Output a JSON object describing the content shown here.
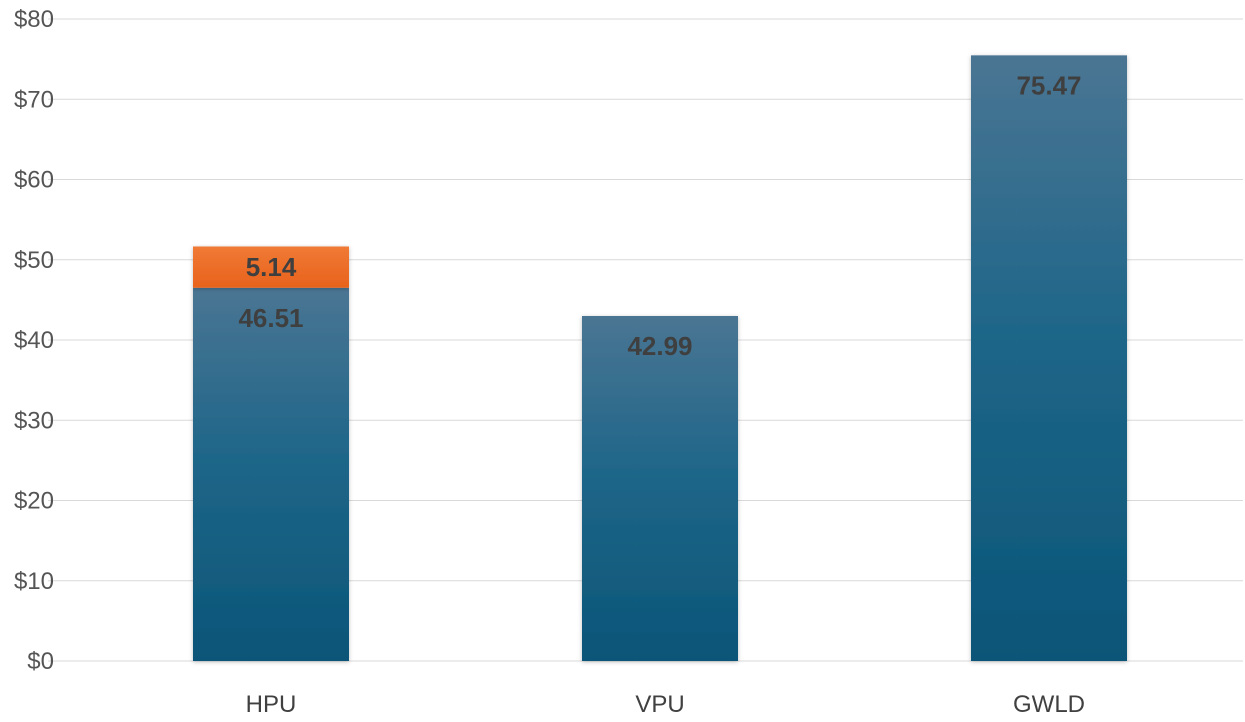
{
  "chart_data": {
    "type": "bar",
    "stacked": true,
    "categories": [
      "HPU",
      "VPU",
      "GWLD"
    ],
    "series": [
      {
        "color": "#0e5a80",
        "values": [
          46.51,
          42.99,
          75.47
        ]
      },
      {
        "color": "#ee6a22",
        "values": [
          5.14,
          null,
          null
        ]
      }
    ],
    "data_labels": [
      [
        "46.51",
        "42.99",
        "75.47"
      ],
      [
        "5.14",
        "",
        ""
      ]
    ],
    "ylim": [
      0,
      80
    ],
    "yticks": [
      0,
      10,
      20,
      30,
      40,
      50,
      60,
      70,
      80
    ],
    "ytick_labels": [
      "$0",
      "$10",
      "$20",
      "$30",
      "$40",
      "$50",
      "$60",
      "$70",
      "$80"
    ],
    "grid": true,
    "title": "",
    "xlabel": "",
    "ylabel": ""
  }
}
